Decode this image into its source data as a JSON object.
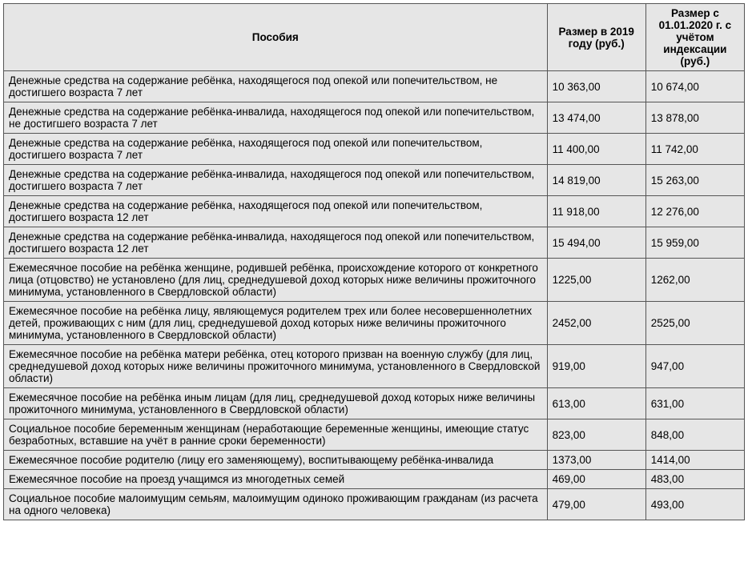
{
  "table": {
    "headers": {
      "col1": "Пособия",
      "col2": "Размер в 2019 году (руб.)",
      "col3": "Размер с 01.01.2020 г. с учётом индексации (руб.)"
    },
    "rows": [
      {
        "desc": "Денежные средства на содержание ребёнка, находящегося под опекой или попечительством, не достигшего возраста 7 лет",
        "v2019": "10 363,00",
        "v2020": "10 674,00"
      },
      {
        "desc": "Денежные средства на содержание ребёнка-инвалида, находящегося под опекой или попечительством, не достигшего возраста 7 лет",
        "v2019": "13 474,00",
        "v2020": "13 878,00"
      },
      {
        "desc": "Денежные средства на содержание ребёнка, находящегося под опекой или попечительством, достигшего возраста 7 лет",
        "v2019": "11 400,00",
        "v2020": "11 742,00"
      },
      {
        "desc": "Денежные средства на содержание ребёнка-инвалида, находящегося под опекой или попечительством, достигшего возраста 7 лет",
        "v2019": "14 819,00",
        "v2020": "15 263,00"
      },
      {
        "desc": "Денежные средства на содержание ребёнка, находящегося под опекой или попечительством, достигшего возраста 12 лет",
        "v2019": "11 918,00",
        "v2020": "12 276,00"
      },
      {
        "desc": "Денежные средства на содержание ребёнка-инвалида, находящегося под опекой или попечительством, достигшего возраста 12 лет",
        "v2019": "15 494,00",
        "v2020": "15 959,00"
      },
      {
        "desc": "Ежемесячное пособие на ребёнка женщине, родившей\nребёнка, происхождение которого от конкретного лица\n(отцовство) не установлено (для лиц, среднедушевой доход которых ниже величины прожиточного минимума, установленного в Свердловской области)",
        "v2019": "1225,00",
        "v2020": "1262,00"
      },
      {
        "desc": "Ежемесячное пособие на ребёнка лицу, являющемуся\nродителем трех или более несовершеннолетних детей, проживающих с ним   (для лиц, среднедушевой доход которых ниже величины прожиточного минимума, установленного в Свердловской области)",
        "v2019": "2452,00",
        "v2020": "2525,00"
      },
      {
        "desc": "Ежемесячное пособие на ребёнка матери ребёнка, отец\nкоторого призван на военную службу (для лиц, среднедушевой доход которых ниже величины прожиточного минимума, установленного в Свердловской области)",
        "v2019": "919,00",
        "v2020": "947,00"
      },
      {
        "desc": "Ежемесячное пособие на ребёнка иным лицам (для лиц, среднедушевой доход которых ниже величины прожиточного минимума, установленного в Свердловской области)",
        "v2019": "613,00",
        "v2020": "631,00"
      },
      {
        "desc": "Социальное пособие беременным женщинам (неработающие беременные женщины, имеющие статус безработных, вставшие на учёт в ранние сроки беременности)",
        "v2019": "823,00",
        "v2020": "848,00"
      },
      {
        "desc": "Ежемесячное пособие родителю (лицу его заменяющему), воспитывающему ребёнка-инвалида",
        "v2019": "1373,00",
        "v2020": "1414,00"
      },
      {
        "desc": "Ежемесячное пособие на проезд учащимся из многодетных семей",
        "v2019": "469,00",
        "v2020": "483,00"
      },
      {
        "desc": "Социальное пособие малоимущим семьям, малоимущим одиноко проживающим гражданам (из расчета на одного человека)",
        "v2019": "479,00",
        "v2020": "493,00"
      }
    ]
  }
}
